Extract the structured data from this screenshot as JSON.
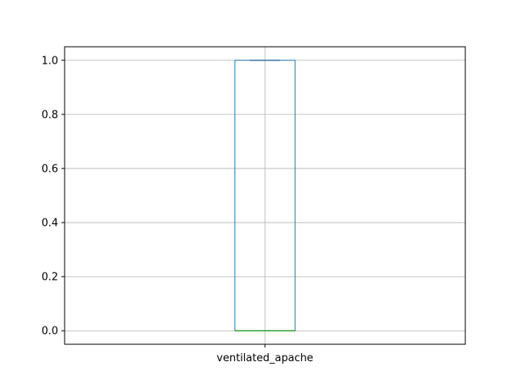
{
  "chart_data": {
    "type": "box",
    "title": "",
    "xlabel": "",
    "ylabel": "",
    "categories": [
      "ventilated_apache"
    ],
    "boxes": [
      {
        "label": "ventilated_apache",
        "whisker_low": 0.0,
        "q1": 0.0,
        "median": 0.0,
        "q3": 1.0,
        "whisker_high": 1.0
      }
    ],
    "ylim": [
      -0.05,
      1.05
    ],
    "y_ticks": [
      0.0,
      0.2,
      0.4,
      0.6,
      0.8,
      1.0
    ],
    "y_tick_labels": [
      "0.0",
      "0.2",
      "0.4",
      "0.6",
      "0.8",
      "1.0"
    ],
    "grid": true,
    "colors": {
      "box": "#1f77b4",
      "median": "#2ca02c",
      "whisker": "#1f77b4",
      "cap": "#000000",
      "grid": "#b0b0b0",
      "axes": "#000000"
    }
  }
}
